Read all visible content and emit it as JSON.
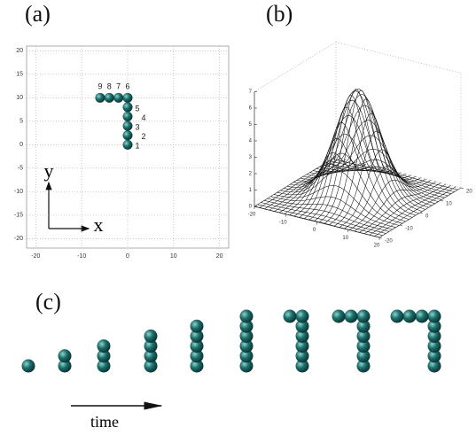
{
  "panels": [
    {
      "label": "(a)",
      "type": "scatter",
      "xlim": [
        -22,
        22
      ],
      "ylim": [
        -22,
        21
      ],
      "xticks": [
        -20,
        -10,
        0,
        10,
        20
      ],
      "yticks": [
        -20,
        -15,
        -10,
        -5,
        0,
        5,
        10,
        15,
        20
      ],
      "x": [
        0,
        0,
        0,
        0,
        0,
        0,
        -2,
        -4,
        -6
      ],
      "y": [
        0,
        2,
        4,
        6,
        8,
        10,
        10,
        10,
        10
      ],
      "point_labels": [
        "1",
        "2",
        "3",
        "4",
        "5",
        "6",
        "7",
        "8",
        "9"
      ],
      "x_axis_label": "x",
      "y_axis_label": "y",
      "grid": true,
      "color": "#1d6f6c"
    },
    {
      "label": "(b)",
      "type": "surface",
      "zlim": [
        0,
        7
      ],
      "zticks": [
        0,
        1,
        2,
        3,
        4,
        5,
        6,
        7
      ],
      "xticks": [
        -20,
        -10,
        0,
        10,
        20
      ],
      "yticks": [
        -20,
        -10,
        0,
        10,
        20
      ],
      "peak": 6.6
    },
    {
      "label": "(c)",
      "type": "sequence",
      "bead_counts": [
        1,
        2,
        3,
        4,
        5,
        6,
        7,
        8,
        9
      ],
      "arrow_label": "time",
      "color": "#1d6f6c"
    }
  ]
}
